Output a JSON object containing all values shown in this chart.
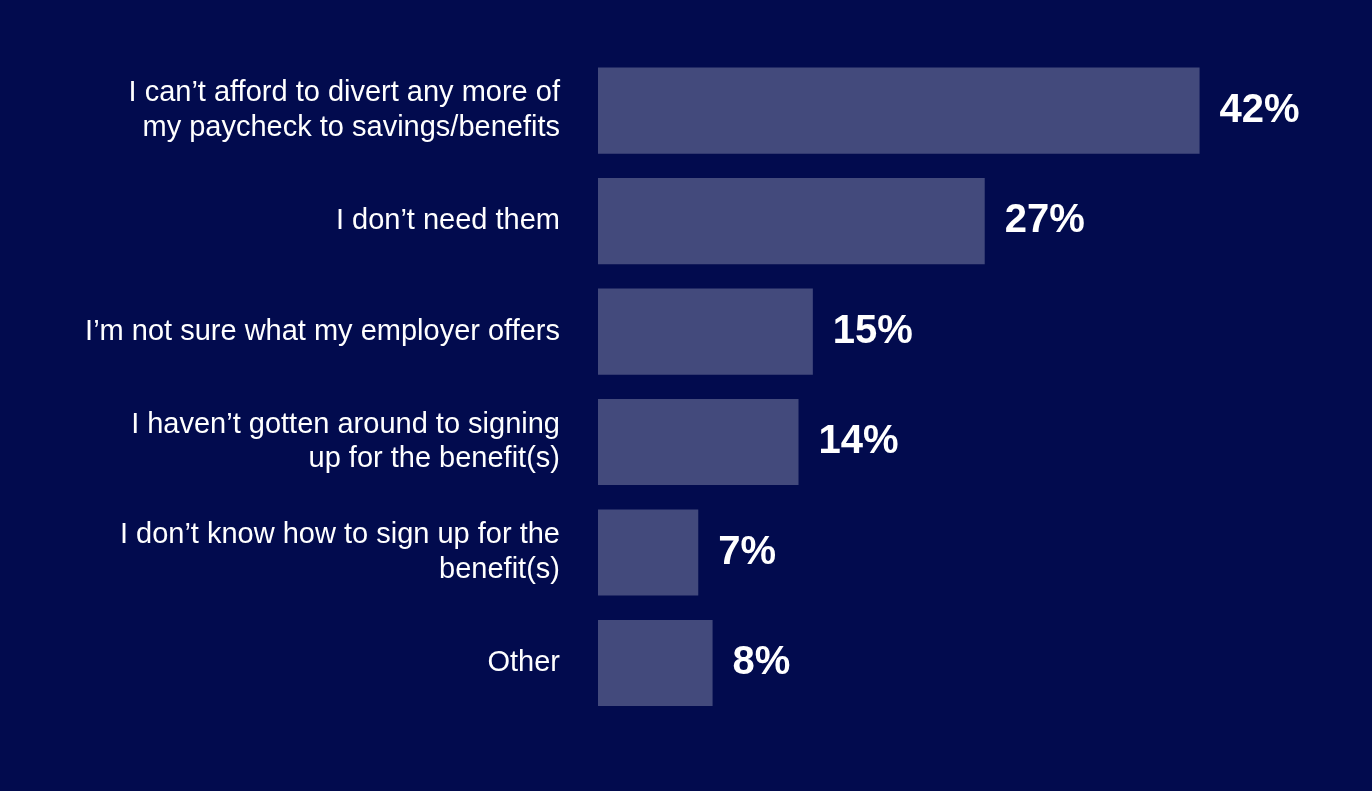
{
  "chart_data": {
    "type": "bar",
    "orientation": "horizontal",
    "categories": [
      "I can’t afford to divert any more of my paycheck to savings/benefits",
      "I don’t need them",
      "I’m not sure what my employer offers",
      "I haven’t gotten around to signing up for the benefit(s)",
      "I don’t know how to sign up for the benefit(s)",
      "Other"
    ],
    "values": [
      42,
      27,
      15,
      14,
      7,
      8
    ],
    "value_labels": [
      "42%",
      "27%",
      "15%",
      "14%",
      "7%",
      "8%"
    ],
    "color": "#434a7c",
    "grid": false,
    "legend": false
  }
}
